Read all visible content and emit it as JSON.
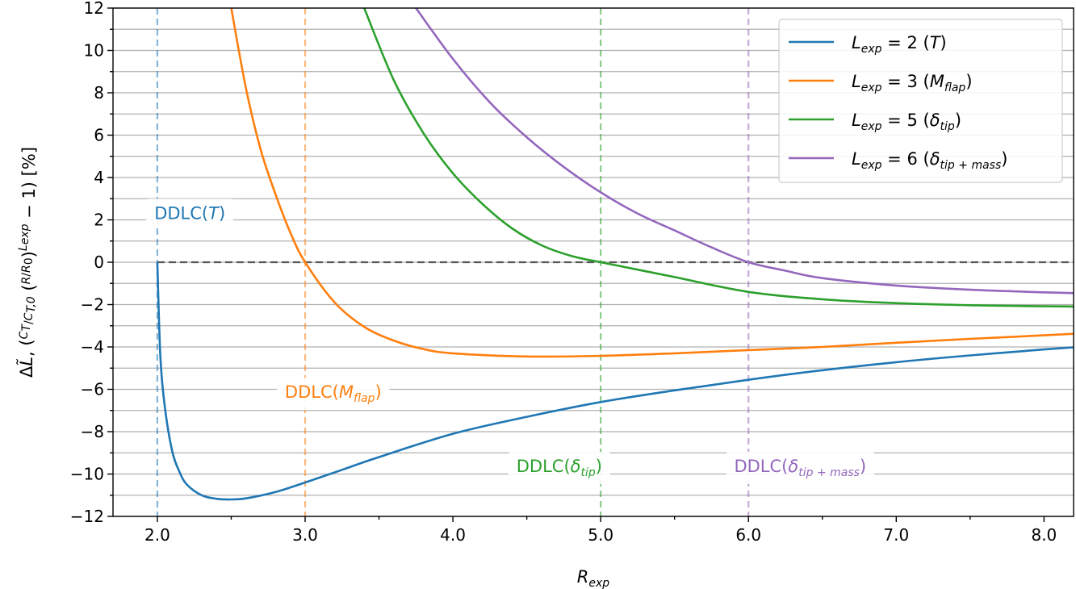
{
  "chart_data": {
    "type": "line",
    "xlabel": "R_exp",
    "ylabel": "ΔL̃, (C_T/C_T,0 (R/R_0)^L_exp − 1) [%]",
    "xlim": [
      1.7,
      8.2
    ],
    "ylim": [
      -12,
      12
    ],
    "xticks": [
      2.0,
      3.0,
      4.0,
      5.0,
      6.0,
      7.0,
      8.0
    ],
    "xtick_labels": [
      "2.0",
      "3.0",
      "4.0",
      "5.0",
      "6.0",
      "7.0",
      "8.0"
    ],
    "yticks": [
      -12,
      -10,
      -8,
      -6,
      -4,
      -2,
      0,
      2,
      4,
      6,
      8,
      10,
      12
    ],
    "ytick_labels": [
      "−12",
      "−10",
      "−8",
      "−6",
      "−4",
      "−2",
      "0",
      "2",
      "4",
      "6",
      "8",
      "10",
      "12"
    ],
    "grid": "horizontal",
    "legend_position": "top-right",
    "zero_line": {
      "y": 0,
      "style": "dashed",
      "color": "#555555"
    },
    "series": [
      {
        "name": "L_exp = 2 (T)",
        "L": 2,
        "color": "#1f77b4",
        "x": [
          2.0,
          2.02,
          2.05,
          2.1,
          2.15,
          2.2,
          2.3,
          2.4,
          2.5,
          2.6,
          2.8,
          3.0,
          3.25,
          3.5,
          4.0,
          4.5,
          5.0,
          5.5,
          6.0,
          6.5,
          7.0,
          7.5,
          8.0,
          8.2
        ],
        "y": [
          0,
          -4.4,
          -6.8,
          -8.9,
          -9.9,
          -10.5,
          -11.0,
          -11.17,
          -11.2,
          -11.15,
          -10.85,
          -10.4,
          -9.8,
          -9.2,
          -8.1,
          -7.3,
          -6.6,
          -6.05,
          -5.55,
          -5.1,
          -4.72,
          -4.4,
          -4.12,
          -4.02
        ]
      },
      {
        "name": "L_exp = 3 (M_flap)",
        "L": 3,
        "color": "#ff7f0e",
        "x": [
          2.5,
          2.6,
          2.7,
          2.8,
          2.9,
          3.0,
          3.2,
          3.4,
          3.6,
          3.8,
          4.0,
          4.5,
          5.0,
          5.5,
          6.0,
          6.5,
          7.0,
          7.5,
          8.0,
          8.2
        ],
        "y": [
          12.0,
          8.2,
          5.3,
          3.2,
          1.4,
          0,
          -1.9,
          -3.05,
          -3.7,
          -4.1,
          -4.3,
          -4.45,
          -4.42,
          -4.3,
          -4.15,
          -4.0,
          -3.8,
          -3.62,
          -3.45,
          -3.38
        ]
      },
      {
        "name": "L_exp = 5 (δ_tip)",
        "L": 5,
        "color": "#2ca02c",
        "x": [
          3.4,
          3.6,
          3.8,
          4.0,
          4.2,
          4.4,
          4.6,
          4.8,
          5.0,
          5.25,
          5.5,
          6.0,
          6.5,
          7.0,
          7.5,
          8.0,
          8.2
        ],
        "y": [
          12.0,
          8.6,
          6.1,
          4.2,
          2.75,
          1.6,
          0.8,
          0.3,
          0,
          -0.35,
          -0.7,
          -1.4,
          -1.75,
          -1.93,
          -2.03,
          -2.08,
          -2.09
        ]
      },
      {
        "name": "L_exp = 6 (δ_tip+mass)",
        "L": 6,
        "color": "#9467bd",
        "x": [
          3.75,
          4.0,
          4.25,
          4.5,
          4.75,
          5.0,
          5.25,
          5.5,
          5.75,
          6.0,
          6.25,
          6.5,
          7.0,
          7.5,
          8.0,
          8.2
        ],
        "y": [
          12.0,
          9.6,
          7.55,
          5.9,
          4.5,
          3.3,
          2.3,
          1.5,
          0.7,
          0,
          -0.4,
          -0.75,
          -1.1,
          -1.3,
          -1.42,
          -1.46
        ]
      }
    ],
    "vlines": [
      {
        "x": 2.0,
        "color": "#1f77b4",
        "label_base": "DDLC(",
        "label_var": "T",
        "label_sub": "",
        "label_x": 2.22,
        "label_y": 2.35
      },
      {
        "x": 3.0,
        "color": "#ff7f0e",
        "label_base": "DDLC(",
        "label_var": "M",
        "label_sub": "flap",
        "label_x": 3.19,
        "label_y": -6.1
      },
      {
        "x": 5.0,
        "color": "#2ca02c",
        "label_base": "DDLC(",
        "label_var": "δ",
        "label_sub": "tip",
        "label_x": 4.72,
        "label_y": -9.6
      },
      {
        "x": 6.0,
        "color": "#9467bd",
        "label_base": "DDLC(",
        "label_var": "δ",
        "label_sub": "tip + mass",
        "label_x": 6.35,
        "label_y": -9.6
      }
    ]
  }
}
